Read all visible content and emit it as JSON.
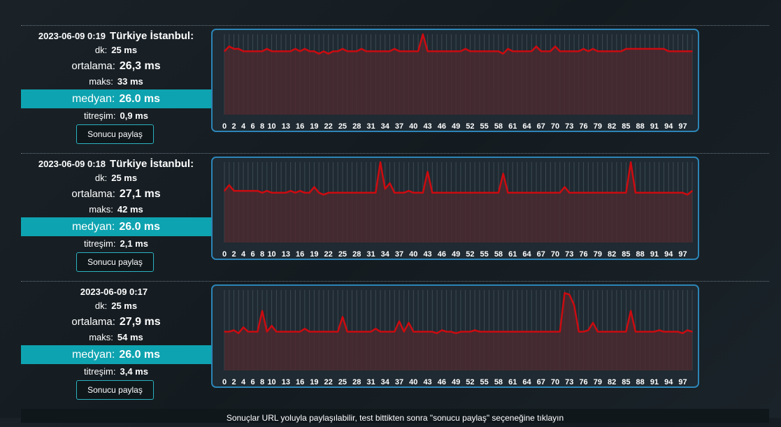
{
  "results": [
    {
      "datetime": "2023-06-09 0:19",
      "location": "Türkiye İstanbul:",
      "min_label": "dk:",
      "min_value": "25 ms",
      "avg_label": "ortalama:",
      "avg_value": "26,3 ms",
      "max_label": "maks:",
      "max_value": "33 ms",
      "median_label": "medyan:",
      "median_value": "26.0 ms",
      "jitter_label": "titreşim:",
      "jitter_value": "0,9 ms",
      "share_label": "Sonucu paylaş"
    },
    {
      "datetime": "2023-06-09 0:18",
      "location": "Türkiye İstanbul:",
      "min_label": "dk:",
      "min_value": "25 ms",
      "avg_label": "ortalama:",
      "avg_value": "27,1 ms",
      "max_label": "maks:",
      "max_value": "42 ms",
      "median_label": "medyan:",
      "median_value": "26.0 ms",
      "jitter_label": "titreşim:",
      "jitter_value": "2,1 ms",
      "share_label": "Sonucu paylaş"
    },
    {
      "datetime": "2023-06-09 0:17",
      "location": "",
      "min_label": "dk:",
      "min_value": "25 ms",
      "avg_label": "ortalama:",
      "avg_value": "27,9 ms",
      "max_label": "maks:",
      "max_value": "54 ms",
      "median_label": "medyan:",
      "median_value": "26.0 ms",
      "jitter_label": "titreşim:",
      "jitter_value": "3,4 ms",
      "share_label": "Sonucu paylaş"
    }
  ],
  "footer_text": "Sonuçlar URL yoluyla paylaşılabilir, test bittikten sonra \"sonucu paylaş\" seçeneğine tıklayın",
  "colors": {
    "accent": "#0ea3b0",
    "line": "#cc0b10",
    "border": "#2c85b7",
    "fill": "#4a2a30"
  },
  "chart_data": [
    {
      "type": "line",
      "x_ticks": [
        0,
        2,
        4,
        6,
        8,
        10,
        13,
        16,
        19,
        22,
        25,
        28,
        31,
        34,
        37,
        40,
        43,
        46,
        49,
        52,
        55,
        58,
        61,
        64,
        67,
        70,
        73,
        76,
        79,
        82,
        85,
        88,
        91,
        94,
        97
      ],
      "ylim": [
        0,
        33
      ],
      "values": [
        26,
        28,
        27,
        27,
        26,
        26,
        26,
        26,
        26,
        27,
        26,
        26,
        26,
        26,
        26,
        27,
        26,
        27,
        26,
        26,
        25,
        26,
        25,
        26,
        26,
        27,
        26,
        26,
        26,
        27,
        26,
        26,
        26,
        26,
        26,
        26,
        27,
        26,
        26,
        26,
        26,
        26,
        33,
        26,
        26,
        26,
        26,
        26,
        26,
        26,
        26,
        27,
        26,
        26,
        26,
        26,
        26,
        26,
        26,
        25,
        27,
        26,
        26,
        26,
        26,
        26,
        28,
        26,
        26,
        26,
        28,
        26,
        26,
        26,
        26,
        26,
        27,
        26,
        27,
        26,
        26,
        26,
        26,
        26,
        26,
        27,
        27,
        27,
        27,
        27,
        27,
        27,
        27,
        27,
        26,
        26,
        26,
        26,
        26,
        26
      ]
    },
    {
      "type": "line",
      "x_ticks": [
        0,
        2,
        4,
        6,
        8,
        10,
        13,
        16,
        19,
        22,
        25,
        28,
        31,
        34,
        37,
        40,
        43,
        46,
        49,
        52,
        55,
        58,
        61,
        64,
        67,
        70,
        73,
        76,
        79,
        82,
        85,
        88,
        91,
        94,
        97
      ],
      "ylim": [
        0,
        42
      ],
      "values": [
        27,
        30,
        27,
        27,
        27,
        27,
        27,
        27,
        26,
        27,
        26,
        26,
        26,
        26,
        27,
        26,
        27,
        26,
        26,
        29,
        26,
        25,
        26,
        26,
        26,
        26,
        26,
        26,
        26,
        26,
        26,
        26,
        26,
        42,
        28,
        31,
        26,
        26,
        26,
        27,
        26,
        26,
        26,
        37,
        26,
        26,
        26,
        26,
        26,
        26,
        26,
        26,
        26,
        26,
        26,
        26,
        26,
        26,
        26,
        36,
        26,
        26,
        26,
        26,
        26,
        26,
        26,
        26,
        26,
        26,
        26,
        26,
        29,
        26,
        26,
        26,
        26,
        26,
        26,
        26,
        26,
        26,
        26,
        26,
        26,
        26,
        42,
        26,
        26,
        26,
        26,
        26,
        26,
        26,
        26,
        26,
        26,
        26,
        25,
        27
      ]
    },
    {
      "type": "line",
      "x_ticks": [
        0,
        2,
        4,
        6,
        8,
        10,
        13,
        16,
        19,
        22,
        25,
        28,
        31,
        34,
        37,
        40,
        43,
        46,
        49,
        52,
        55,
        58,
        61,
        64,
        67,
        70,
        73,
        76,
        79,
        82,
        85,
        88,
        91,
        94,
        97
      ],
      "ylim": [
        0,
        54
      ],
      "values": [
        26,
        26,
        27,
        25,
        29,
        26,
        26,
        26,
        40,
        26,
        30,
        26,
        26,
        26,
        26,
        26,
        26,
        28,
        26,
        26,
        26,
        26,
        26,
        26,
        26,
        36,
        26,
        26,
        26,
        26,
        26,
        26,
        28,
        26,
        26,
        26,
        26,
        33,
        26,
        32,
        26,
        26,
        26,
        26,
        26,
        25,
        27,
        26,
        26,
        25,
        26,
        26,
        26,
        27,
        26,
        26,
        26,
        26,
        26,
        26,
        26,
        26,
        26,
        26,
        26,
        26,
        26,
        26,
        26,
        26,
        26,
        26,
        52,
        51,
        44,
        26,
        26,
        27,
        32,
        26,
        26,
        26,
        26,
        26,
        26,
        26,
        40,
        26,
        26,
        26,
        26,
        26,
        27,
        26,
        26,
        26,
        26,
        25,
        27,
        26
      ]
    }
  ]
}
